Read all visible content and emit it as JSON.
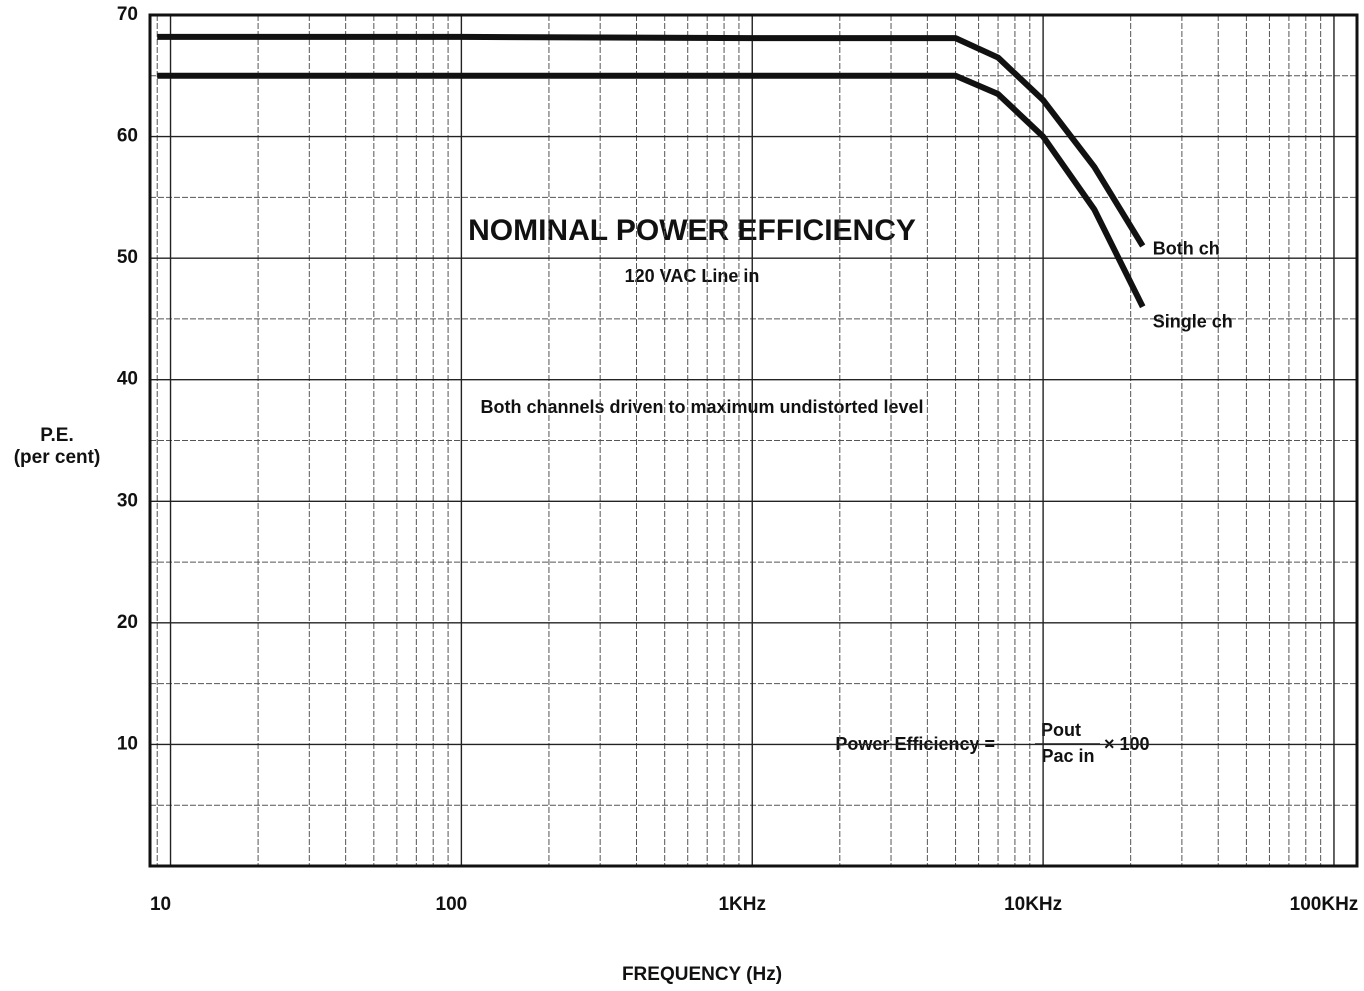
{
  "chart_data": {
    "type": "line",
    "title": "NOMINAL POWER EFFICIENCY",
    "subtitle": "120 VAC Line in",
    "note": "Both channels driven to maximum undistorted level",
    "formula": {
      "left": "Power Efficiency =",
      "numerator": "Pout",
      "denominator": "Pac in",
      "right": "× 100"
    },
    "x_label": "FREQUENCY (Hz)",
    "y_label": [
      "P.E.",
      "(per cent)"
    ],
    "x_scale": "log",
    "xlim": [
      8.5,
      120000
    ],
    "xticks": [
      10,
      100,
      {
        "value": 1000,
        "label": "1KHz"
      },
      {
        "value": 10000,
        "label": "10KHz"
      },
      {
        "value": 100000,
        "label": "100KHz"
      }
    ],
    "ylim": [
      0,
      70
    ],
    "yticks": [
      10,
      20,
      30,
      40,
      50,
      60,
      70
    ],
    "grid": true,
    "series": [
      {
        "name": "Both ch",
        "color": "#111111",
        "x": [
          9,
          100,
          1000,
          5000,
          7000,
          10000,
          15000,
          22000
        ],
        "values": [
          68.2,
          68.2,
          68.1,
          68.1,
          66.5,
          63,
          57.5,
          51
        ]
      },
      {
        "name": "Single ch",
        "color": "#111111",
        "x": [
          9,
          100,
          1000,
          5000,
          7000,
          10000,
          15000,
          22000
        ],
        "values": [
          65,
          65,
          65,
          65,
          63.5,
          60,
          54,
          46
        ]
      }
    ]
  }
}
